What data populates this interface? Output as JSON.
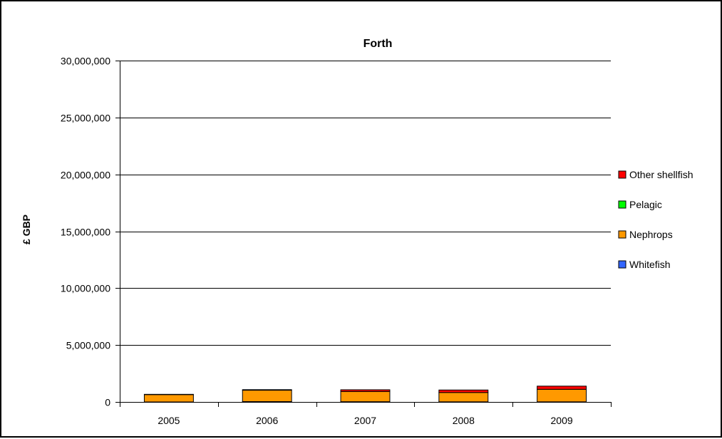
{
  "chart_data": {
    "type": "bar",
    "stacked": true,
    "title": "Forth",
    "xlabel": "",
    "ylabel": "£ GBP",
    "categories": [
      "2005",
      "2006",
      "2007",
      "2008",
      "2009"
    ],
    "ylim": [
      0,
      30000000
    ],
    "yticks": [
      0,
      5000000,
      10000000,
      15000000,
      20000000,
      25000000,
      30000000
    ],
    "ytick_labels": [
      "0",
      "5,000,000",
      "10,000,000",
      "15,000,000",
      "20,000,000",
      "25,000,000",
      "30,000,000"
    ],
    "grid": true,
    "legend_position": "right",
    "series": [
      {
        "name": "Whitefish",
        "color": "#3366FF",
        "values": [
          0,
          30000,
          20000,
          10000,
          10000
        ]
      },
      {
        "name": "Nephrops",
        "color": "#FF9900",
        "values": [
          650000,
          1000000,
          900000,
          820000,
          1100000
        ]
      },
      {
        "name": "Pelagic",
        "color": "#00FF00",
        "values": [
          0,
          0,
          0,
          0,
          0
        ]
      },
      {
        "name": "Other shellfish",
        "color": "#FF0000",
        "values": [
          20000,
          50000,
          150000,
          220000,
          280000
        ]
      }
    ],
    "legend_order": [
      "Other shellfish",
      "Pelagic",
      "Nephrops",
      "Whitefish"
    ]
  }
}
